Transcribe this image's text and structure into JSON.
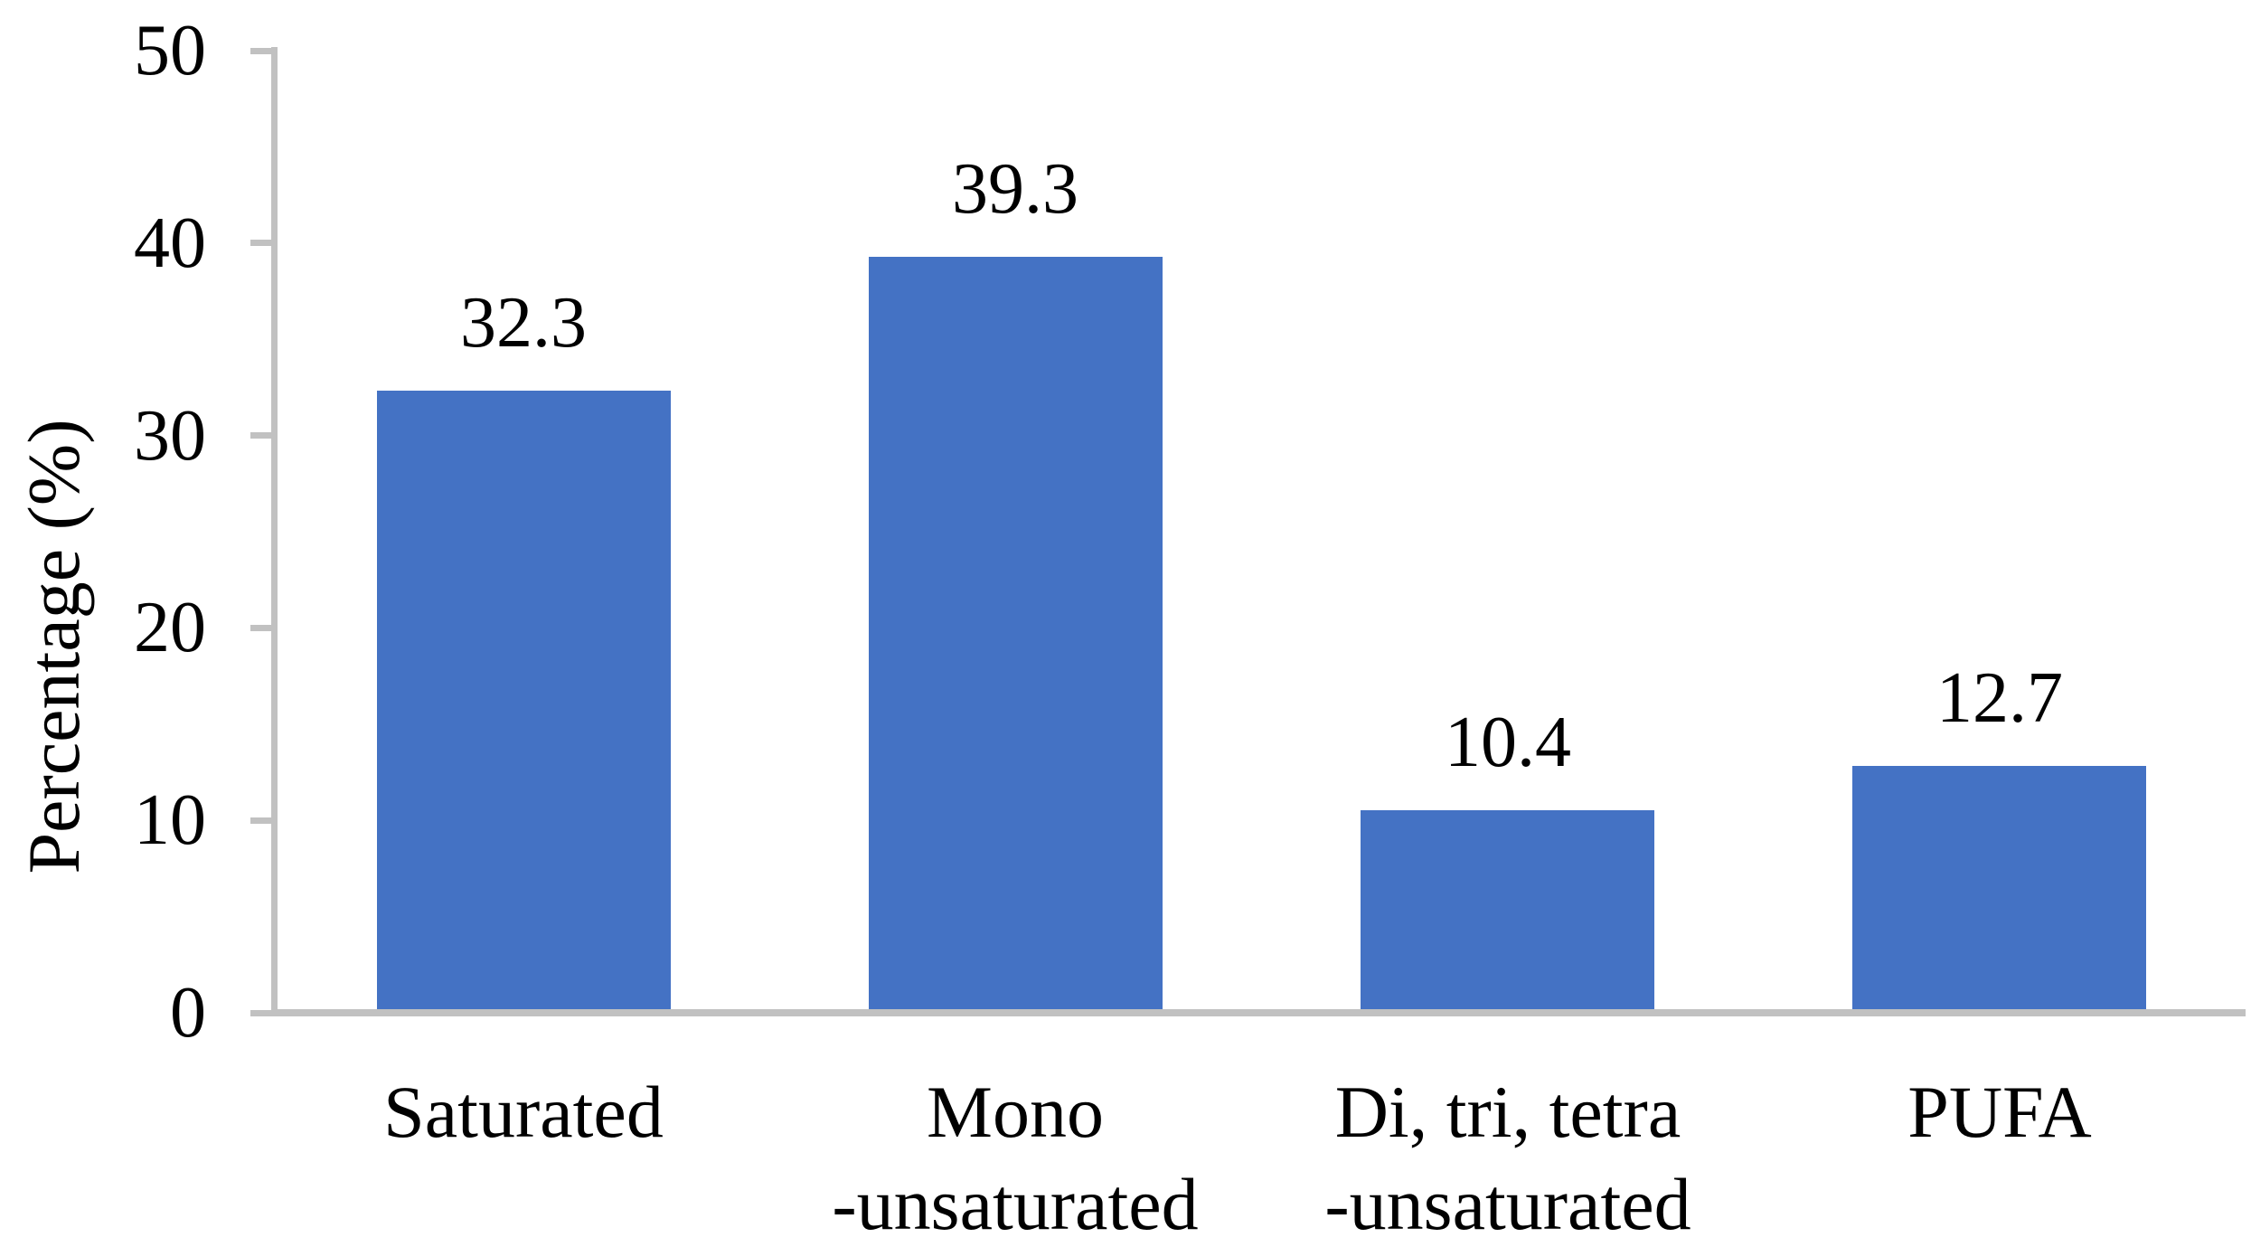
{
  "chart_data": {
    "type": "bar",
    "title": "",
    "xlabel": "",
    "ylabel": "Percentage (%)",
    "categories": [
      "Saturated",
      "Mono -unsaturated",
      "Di, tri, tetra -unsaturated",
      "PUFA"
    ],
    "category_lines": [
      [
        "Saturated"
      ],
      [
        "Mono",
        "-unsaturated"
      ],
      [
        "Di, tri, tetra",
        "-unsaturated"
      ],
      [
        "PUFA"
      ]
    ],
    "values": [
      32.3,
      39.3,
      10.4,
      12.7
    ],
    "value_labels": [
      "32.3",
      "39.3",
      "10.4",
      "12.7"
    ],
    "yticks": [
      0,
      10,
      20,
      30,
      40,
      50
    ],
    "ytick_labels": [
      "0",
      "10",
      "20",
      "30",
      "40",
      "50"
    ],
    "ylim": [
      0,
      50
    ],
    "grid": "off",
    "legend": "none",
    "bar_color": "#4472C4",
    "axis_color": "#C1C1C1",
    "text_color": "#000000"
  }
}
